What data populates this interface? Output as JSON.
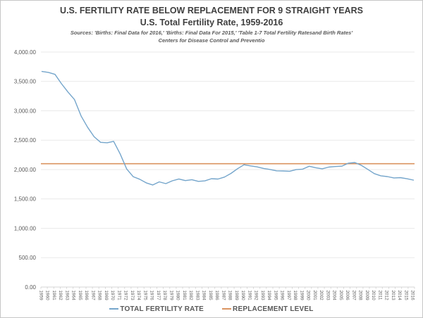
{
  "header": {
    "title": "U.S. FERTILITY RATE BELOW REPLACEMENT FOR 9 STRAIGHT YEARS",
    "subtitle": "U.S. Total Fertility Rate, 1959-2016",
    "source_line1": "Sources: 'Births: Final Data for 2016,' 'Births: Final Data For 2015,' 'Table 1-7 Total Fertility Ratesand Birth Rates'",
    "source_line2": "Centers for Disease Control and Preventio"
  },
  "chart_data": {
    "type": "line",
    "title": "U.S. FERTILITY RATE BELOW REPLACEMENT FOR 9 STRAIGHT YEARS",
    "subtitle": "U.S. Total Fertility Rate, 1959-2016",
    "x": [
      1959,
      1960,
      1961,
      1962,
      1963,
      1964,
      1965,
      1966,
      1967,
      1968,
      1969,
      1970,
      1971,
      1972,
      1973,
      1974,
      1975,
      1976,
      1977,
      1978,
      1979,
      1980,
      1981,
      1982,
      1983,
      1984,
      1985,
      1986,
      1987,
      1988,
      1989,
      1990,
      1991,
      1992,
      1993,
      1994,
      1995,
      1996,
      1997,
      1998,
      1999,
      2000,
      2001,
      2002,
      2003,
      2004,
      2005,
      2006,
      2007,
      2008,
      2009,
      2010,
      2011,
      2012,
      2013,
      2014,
      2015,
      2016
    ],
    "series": [
      {
        "name": "TOTAL FERTILITY RATE",
        "color": "#74A5CB",
        "values": [
          3670,
          3654,
          3620,
          3461,
          3319,
          3190,
          2913,
          2721,
          2558,
          2464,
          2456,
          2480,
          2267,
          2010,
          1879,
          1835,
          1774,
          1738,
          1790,
          1760,
          1808,
          1840,
          1812,
          1828,
          1799,
          1807,
          1844,
          1838,
          1872,
          1934,
          2014,
          2081,
          2062,
          2046,
          2019,
          2001,
          1978,
          1976,
          1971,
          1999,
          2007,
          2056,
          2031,
          2013,
          2042,
          2051,
          2057,
          2108,
          2120,
          2072,
          2002,
          1931,
          1894,
          1880,
          1857,
          1862,
          1843,
          1820
        ]
      },
      {
        "name": "REPLACEMENT LEVEL",
        "color": "#DB9461",
        "constant_value": 2100
      }
    ],
    "ylim": [
      0,
      4000
    ],
    "ytick_step": 500,
    "ytick_labels": [
      "0.00",
      "500.00",
      "1,000.00",
      "1,500.00",
      "2,000.00",
      "2,500.00",
      "3,000.00",
      "3,500.00",
      "4,000.00"
    ],
    "grid": true,
    "legend_position": "bottom",
    "colors": {
      "grid": "#e9e9e9",
      "axis": "#d4d4d4",
      "tick": "#cfcfcf",
      "axis_text": "#595959",
      "title_text": "#3f3f3f"
    }
  },
  "legend": {
    "items": [
      {
        "label": "TOTAL FERTILITY RATE",
        "color": "#74A5CB"
      },
      {
        "label": "REPLACEMENT LEVEL",
        "color": "#DB9461"
      }
    ]
  }
}
